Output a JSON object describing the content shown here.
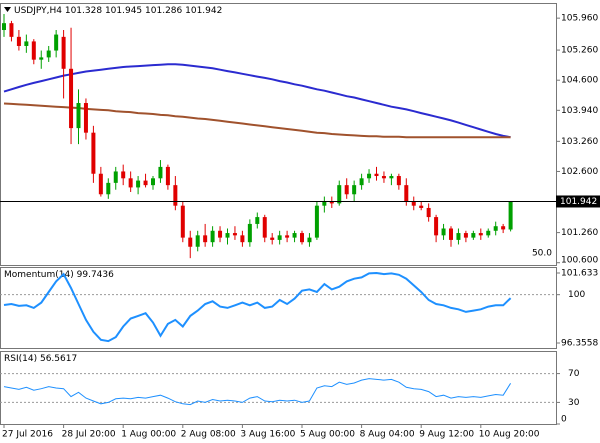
{
  "chart_data": [
    {
      "type": "candlestick",
      "symbol": "USDJPY,H4",
      "categories": [
        "27 Jul 2016",
        null,
        null,
        null,
        null,
        null,
        null,
        null,
        "28 Jul 20:00",
        null,
        null,
        null,
        null,
        null,
        null,
        null,
        "1 Aug 00:00",
        null,
        null,
        null,
        null,
        null,
        null,
        null,
        "2 Aug 08:00",
        null,
        null,
        null,
        null,
        null,
        null,
        null,
        "3 Aug 16:00",
        null,
        null,
        null,
        null,
        null,
        null,
        null,
        "5 Aug 00:00",
        null,
        null,
        null,
        null,
        null,
        null,
        null,
        "8 Aug 04:00",
        null,
        null,
        null,
        null,
        null,
        null,
        null,
        "9 Aug 12:00",
        null,
        null,
        null,
        null,
        null,
        null,
        null,
        "10 Aug 20:00",
        null,
        null,
        null,
        null
      ],
      "open": [
        105.7,
        105.85,
        105.55,
        105.35,
        105.45,
        105.05,
        105.1,
        105.25,
        105.55,
        104.85,
        103.55,
        104.1,
        103.45,
        102.55,
        102.1,
        102.35,
        102.6,
        102.45,
        102.25,
        102.4,
        102.3,
        102.45,
        102.7,
        102.3,
        101.85,
        101.15,
        100.95,
        101.2,
        101.05,
        101.3,
        101.15,
        101.25,
        101.2,
        101.05,
        101.45,
        101.6,
        101.15,
        101.1,
        101.2,
        101.15,
        101.25,
        101.05,
        101.15,
        101.85,
        101.95,
        101.9,
        102.3,
        102.1,
        102.3,
        102.45,
        102.55,
        102.5,
        102.45,
        102.5,
        102.3,
        101.95,
        101.85,
        101.8,
        101.6,
        101.2,
        101.35,
        101.1,
        101.25,
        101.15,
        101.25,
        101.2,
        101.3,
        101.4,
        101.328
      ],
      "high": [
        106.05,
        105.9,
        105.7,
        105.6,
        105.5,
        105.25,
        105.35,
        105.7,
        105.7,
        105.75,
        104.4,
        104.2,
        103.6,
        102.7,
        102.45,
        102.7,
        102.75,
        102.6,
        102.5,
        102.55,
        102.5,
        102.85,
        102.75,
        102.5,
        101.95,
        101.3,
        101.3,
        101.45,
        101.4,
        101.4,
        101.35,
        101.4,
        101.3,
        101.55,
        101.7,
        101.65,
        101.25,
        101.3,
        101.3,
        101.3,
        101.3,
        101.25,
        101.95,
        102.05,
        102.05,
        102.4,
        102.45,
        102.4,
        102.55,
        102.65,
        102.7,
        102.6,
        102.55,
        102.55,
        102.45,
        102.05,
        101.95,
        101.9,
        101.65,
        101.45,
        101.4,
        101.35,
        101.3,
        101.3,
        101.35,
        101.35,
        101.5,
        101.45,
        101.945
      ],
      "low": [
        105.55,
        105.45,
        105.25,
        105.2,
        104.95,
        104.85,
        105.0,
        105.1,
        104.2,
        103.2,
        103.2,
        103.3,
        102.35,
        102.05,
        102.0,
        102.2,
        102.3,
        102.15,
        102.1,
        102.25,
        102.2,
        102.35,
        102.2,
        101.75,
        101.05,
        100.7,
        100.85,
        100.95,
        100.95,
        101.05,
        101.0,
        101.1,
        100.95,
        100.95,
        101.35,
        101.05,
        101.0,
        101.0,
        101.05,
        101.05,
        101.0,
        100.95,
        101.1,
        101.7,
        101.8,
        101.85,
        102.0,
        101.95,
        102.2,
        102.35,
        102.4,
        102.35,
        102.3,
        102.2,
        101.85,
        101.75,
        101.75,
        101.5,
        101.05,
        101.1,
        100.95,
        101.0,
        101.05,
        101.1,
        101.1,
        101.15,
        101.2,
        101.25,
        101.286
      ],
      "close": [
        105.85,
        105.55,
        105.35,
        105.45,
        105.05,
        105.1,
        105.25,
        105.6,
        104.85,
        103.55,
        104.1,
        103.45,
        102.55,
        102.1,
        102.35,
        102.6,
        102.45,
        102.25,
        102.4,
        102.3,
        102.45,
        102.7,
        102.3,
        101.85,
        101.15,
        100.95,
        101.2,
        101.05,
        101.3,
        101.15,
        101.25,
        101.2,
        101.05,
        101.45,
        101.6,
        101.15,
        101.1,
        101.2,
        101.15,
        101.25,
        101.05,
        101.15,
        101.85,
        101.95,
        101.9,
        102.3,
        102.1,
        102.3,
        102.45,
        102.55,
        102.5,
        102.45,
        102.5,
        102.3,
        101.95,
        101.85,
        101.8,
        101.6,
        101.2,
        101.35,
        101.1,
        101.25,
        101.15,
        101.25,
        101.2,
        101.3,
        101.4,
        101.33,
        101.942
      ],
      "up_color": "#00a000",
      "down_color": "#e00000",
      "ma": [
        {
          "color": "#2b2bd0",
          "values": [
            104.35,
            104.4,
            104.45,
            104.5,
            104.54,
            104.58,
            104.62,
            104.66,
            104.7,
            104.73,
            104.76,
            104.79,
            104.81,
            104.83,
            104.85,
            104.87,
            104.89,
            104.9,
            104.91,
            104.92,
            104.93,
            104.94,
            104.95,
            104.95,
            104.94,
            104.92,
            104.9,
            104.88,
            104.86,
            104.83,
            104.8,
            104.77,
            104.74,
            104.71,
            104.68,
            104.65,
            104.62,
            104.58,
            104.55,
            104.51,
            104.48,
            104.44,
            104.4,
            104.37,
            104.33,
            104.29,
            104.25,
            104.22,
            104.18,
            104.14,
            104.1,
            104.06,
            104.02,
            103.99,
            103.96,
            103.92,
            103.88,
            103.84,
            103.8,
            103.76,
            103.72,
            103.67,
            103.62,
            103.57,
            103.52,
            103.47,
            103.42,
            103.38,
            103.35
          ]
        },
        {
          "color": "#a0522d",
          "values": [
            104.09,
            104.08,
            104.07,
            104.06,
            104.05,
            104.04,
            104.03,
            104.02,
            104.01,
            104.0,
            103.99,
            103.97,
            103.96,
            103.95,
            103.94,
            103.92,
            103.91,
            103.9,
            103.88,
            103.87,
            103.86,
            103.84,
            103.83,
            103.81,
            103.8,
            103.78,
            103.76,
            103.75,
            103.73,
            103.71,
            103.69,
            103.67,
            103.65,
            103.63,
            103.61,
            103.59,
            103.57,
            103.55,
            103.53,
            103.51,
            103.49,
            103.47,
            103.45,
            103.44,
            103.42,
            103.41,
            103.4,
            103.39,
            103.38,
            103.37,
            103.37,
            103.36,
            103.36,
            103.36,
            103.35,
            103.35,
            103.35,
            103.35,
            103.35,
            103.35,
            103.35,
            103.35,
            103.35,
            103.35,
            103.35,
            103.35,
            103.35,
            103.35,
            103.35
          ]
        }
      ],
      "ylim": [
        100.55,
        106.27
      ],
      "yticks": [
        {
          "value": 105.96,
          "label": "105.960"
        },
        {
          "value": 105.26,
          "label": "105.260"
        },
        {
          "value": 104.6,
          "label": "104.600"
        },
        {
          "value": 103.94,
          "label": "103.940"
        },
        {
          "value": 103.26,
          "label": "103.260"
        },
        {
          "value": 102.6,
          "label": "102.600"
        },
        {
          "value": 101.26,
          "label": "101.260"
        },
        {
          "value": 100.6,
          "label": "100.600"
        }
      ],
      "annotation": "50.0"
    },
    {
      "type": "line",
      "title": "Momentum(14)",
      "series": [
        {
          "color": "#1e90ff",
          "values": [
            99.22,
            99.3,
            99.15,
            99.2,
            99.0,
            99.4,
            100.2,
            101.0,
            101.55,
            100.5,
            99.3,
            98.1,
            97.2,
            96.6,
            96.5,
            96.8,
            97.6,
            98.2,
            98.4,
            98.6,
            97.9,
            96.9,
            97.8,
            98.1,
            97.6,
            98.4,
            98.8,
            99.3,
            99.5,
            99.1,
            99.0,
            99.2,
            99.4,
            99.2,
            99.4,
            99.0,
            99.1,
            99.6,
            99.3,
            99.7,
            100.3,
            100.4,
            100.2,
            100.8,
            100.4,
            100.6,
            101.0,
            101.2,
            101.3,
            101.6,
            101.63,
            101.55,
            101.6,
            101.5,
            101.2,
            100.7,
            100.2,
            99.6,
            99.3,
            99.2,
            99.0,
            98.9,
            98.7,
            98.8,
            98.9,
            99.1,
            99.2,
            99.2,
            99.7436
          ]
        }
      ],
      "ylim": [
        95.98,
        102.01
      ],
      "yticks": [
        101.633,
        96.3558
      ],
      "levels": [
        100
      ]
    },
    {
      "type": "line",
      "title": "RSI(14)",
      "series": [
        {
          "color": "#1e90ff",
          "values": [
            52,
            50,
            48,
            51,
            47,
            49,
            52,
            50,
            49,
            38,
            44,
            36,
            32,
            28,
            30,
            35,
            36,
            35,
            37,
            36,
            38,
            40,
            36,
            31,
            28,
            27,
            32,
            30,
            34,
            32,
            33,
            32,
            30,
            36,
            38,
            32,
            31,
            33,
            32,
            33,
            30,
            32,
            50,
            53,
            52,
            58,
            55,
            57,
            61,
            63,
            62,
            61,
            62,
            58,
            51,
            49,
            48,
            45,
            38,
            40,
            36,
            38,
            37,
            38,
            37,
            39,
            41,
            40,
            56.5617
          ]
        }
      ],
      "ylim": [
        0,
        100
      ],
      "yticks": [
        0
      ],
      "levels": [
        70,
        30
      ]
    }
  ]
}
